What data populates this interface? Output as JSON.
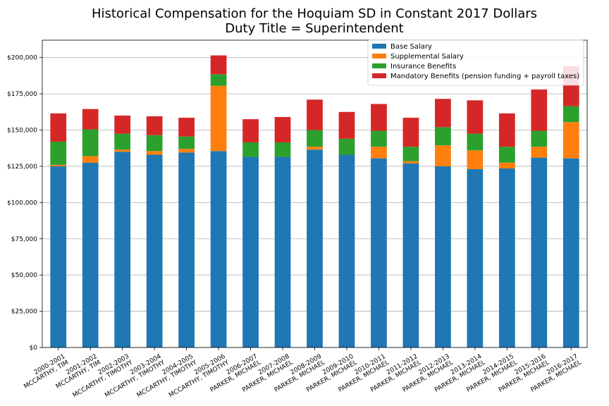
{
  "chart_data": {
    "type": "bar",
    "stacked": true,
    "title": "Historical Compensation for the Hoquiam SD in Constant 2017 Dollars",
    "subtitle": "Duty Title = Superintendent",
    "xlabel": "",
    "ylabel": "",
    "ylim": [
      0,
      212000
    ],
    "yticks": [
      0,
      25000,
      50000,
      75000,
      100000,
      125000,
      150000,
      175000,
      200000
    ],
    "ytick_labels": [
      "$0",
      "$25,000",
      "$50,000",
      "$75,000",
      "$100,000",
      "$125,000",
      "$150,000",
      "$175,000",
      "$200,000"
    ],
    "grid": "horizontal",
    "legend_position": "top-right",
    "categories": [
      [
        "2000-2001",
        "MCCARTHY, TIM"
      ],
      [
        "2001-2002",
        "MCCARTHY, TIM"
      ],
      [
        "2002-2003",
        "MCCARTHY, TIMOTHY"
      ],
      [
        "2003-2004",
        "MCCARTHY, TIMOTHY"
      ],
      [
        "2004-2005",
        "MCCARTHY, TIMOTHY"
      ],
      [
        "2005-2006",
        "MCCARTHY, TIMOTHY"
      ],
      [
        "2006-2007",
        "PARKER, MICHAEL"
      ],
      [
        "2007-2008",
        "PARKER, MICHAEL"
      ],
      [
        "2008-2009",
        "PARKER, MICHAEL"
      ],
      [
        "2009-2010",
        "PARKER, MICHAEL"
      ],
      [
        "2010-2011",
        "PARKER, MICHAEL"
      ],
      [
        "2011-2012",
        "PARKER, MICHAEL"
      ],
      [
        "2012-2013",
        "PARKER, MICHAEL"
      ],
      [
        "2013-2014",
        "PARKER, MICHAEL"
      ],
      [
        "2014-2015",
        "PARKER, MICHAEL"
      ],
      [
        "2015-2016",
        "PARKER, MICHAEL"
      ],
      [
        "2016-2017",
        "PARKER, MICHAEL"
      ]
    ],
    "series": [
      {
        "name": "Base Salary",
        "color": "#1f77b4",
        "values": [
          125000,
          127500,
          135000,
          133000,
          134500,
          135500,
          131500,
          131500,
          136500,
          133000,
          130500,
          127000,
          125000,
          123000,
          123500,
          131000,
          130500
        ]
      },
      {
        "name": "Supplemental Salary",
        "color": "#ff7f0e",
        "values": [
          1000,
          4500,
          1500,
          2500,
          2500,
          45000,
          0,
          0,
          2000,
          0,
          8000,
          1500,
          14500,
          13000,
          4000,
          7500,
          25000
        ]
      },
      {
        "name": "Insurance Benefits",
        "color": "#2ca02c",
        "values": [
          16000,
          18500,
          11000,
          11000,
          8500,
          8000,
          10000,
          10000,
          11500,
          11000,
          11000,
          10000,
          12500,
          11500,
          11000,
          11000,
          11000
        ]
      },
      {
        "name": "Mandatory Benefits (pension funding + payroll taxes)",
        "color": "#d62728",
        "values": [
          19500,
          14000,
          12500,
          13000,
          13000,
          13000,
          16000,
          17500,
          21000,
          18500,
          18500,
          20000,
          19500,
          23000,
          23000,
          28500,
          27500
        ]
      }
    ]
  }
}
